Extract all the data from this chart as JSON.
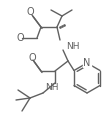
{
  "bg_color": "#ffffff",
  "line_color": "#606060",
  "line_width": 1.0,
  "figsize": [
    1.07,
    1.39
  ],
  "dpi": 100,
  "xlim": [
    0,
    107
  ],
  "ylim": [
    0,
    139
  ]
}
